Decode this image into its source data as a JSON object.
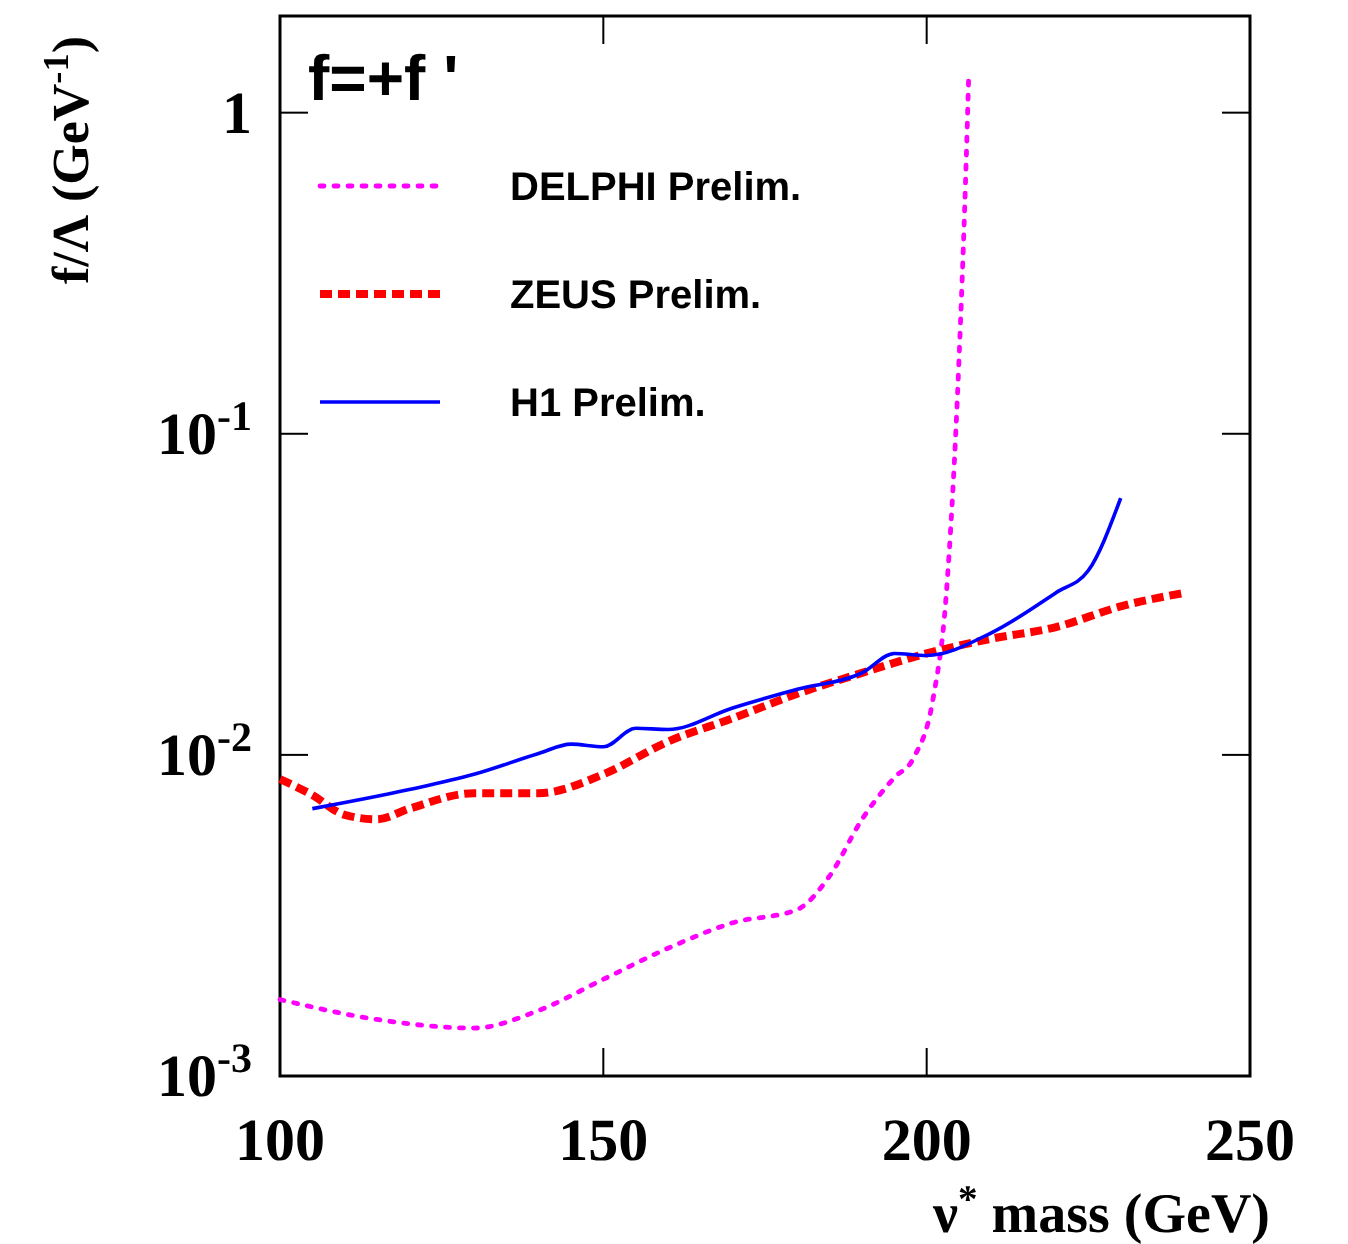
{
  "chart_data": {
    "type": "line",
    "xlabel": "ν$^{*}$ mass (GeV)",
    "ylabel": "f/Λ (GeV$^{-1}$)",
    "annotations": [
      "f=+f '"
    ],
    "log": "y",
    "xlim": [
      100,
      250
    ],
    "ylim": [
      0.001,
      2
    ],
    "xticks": [
      100,
      150,
      200,
      250
    ],
    "yticks": [
      {
        "value": 0.001,
        "label": "10$^{-3}$"
      },
      {
        "value": 0.01,
        "label": "10$^{-2}$"
      },
      {
        "value": 0.1,
        "label": "10$^{-1}$"
      },
      1
    ],
    "legend": "top left",
    "grid": false,
    "series": [
      {
        "name": "DELPHI Prelim.",
        "color": "#ff00ff",
        "line_style": "dotted",
        "x": [
          100,
          115,
          130,
          140,
          150,
          160,
          170,
          180,
          185,
          190,
          195,
          198,
          201,
          203,
          205,
          206,
          206.5
        ],
        "values": [
          0.00173,
          0.0015,
          0.00141,
          0.0016,
          0.002,
          0.0025,
          0.003,
          0.0033,
          0.0042,
          0.0063,
          0.0085,
          0.0098,
          0.015,
          0.031,
          0.17,
          0.6,
          1.3
        ]
      },
      {
        "name": "ZEUS Prelim.",
        "color": "#ff0000",
        "line_style": "dashed",
        "x": [
          100,
          105,
          110,
          115,
          120,
          130,
          140,
          150,
          160,
          170,
          180,
          190,
          200,
          210,
          220,
          230,
          240
        ],
        "values": [
          0.0084,
          0.0075,
          0.0065,
          0.0063,
          0.0068,
          0.0076,
          0.0076,
          0.0087,
          0.011,
          0.013,
          0.0155,
          0.018,
          0.0207,
          0.023,
          0.025,
          0.029,
          0.032
        ]
      },
      {
        "name": "H1 Prelim.",
        "color": "#0000ff",
        "line_style": "solid",
        "x": [
          105,
          120,
          130,
          140,
          145,
          150,
          155,
          160,
          170,
          180,
          190,
          195,
          200,
          210,
          220,
          225,
          230
        ],
        "values": [
          0.0068,
          0.0078,
          0.0087,
          0.0101,
          0.0108,
          0.0106,
          0.0121,
          0.012,
          0.014,
          0.016,
          0.018,
          0.0207,
          0.0204,
          0.024,
          0.032,
          0.0375,
          0.063
        ]
      }
    ]
  }
}
